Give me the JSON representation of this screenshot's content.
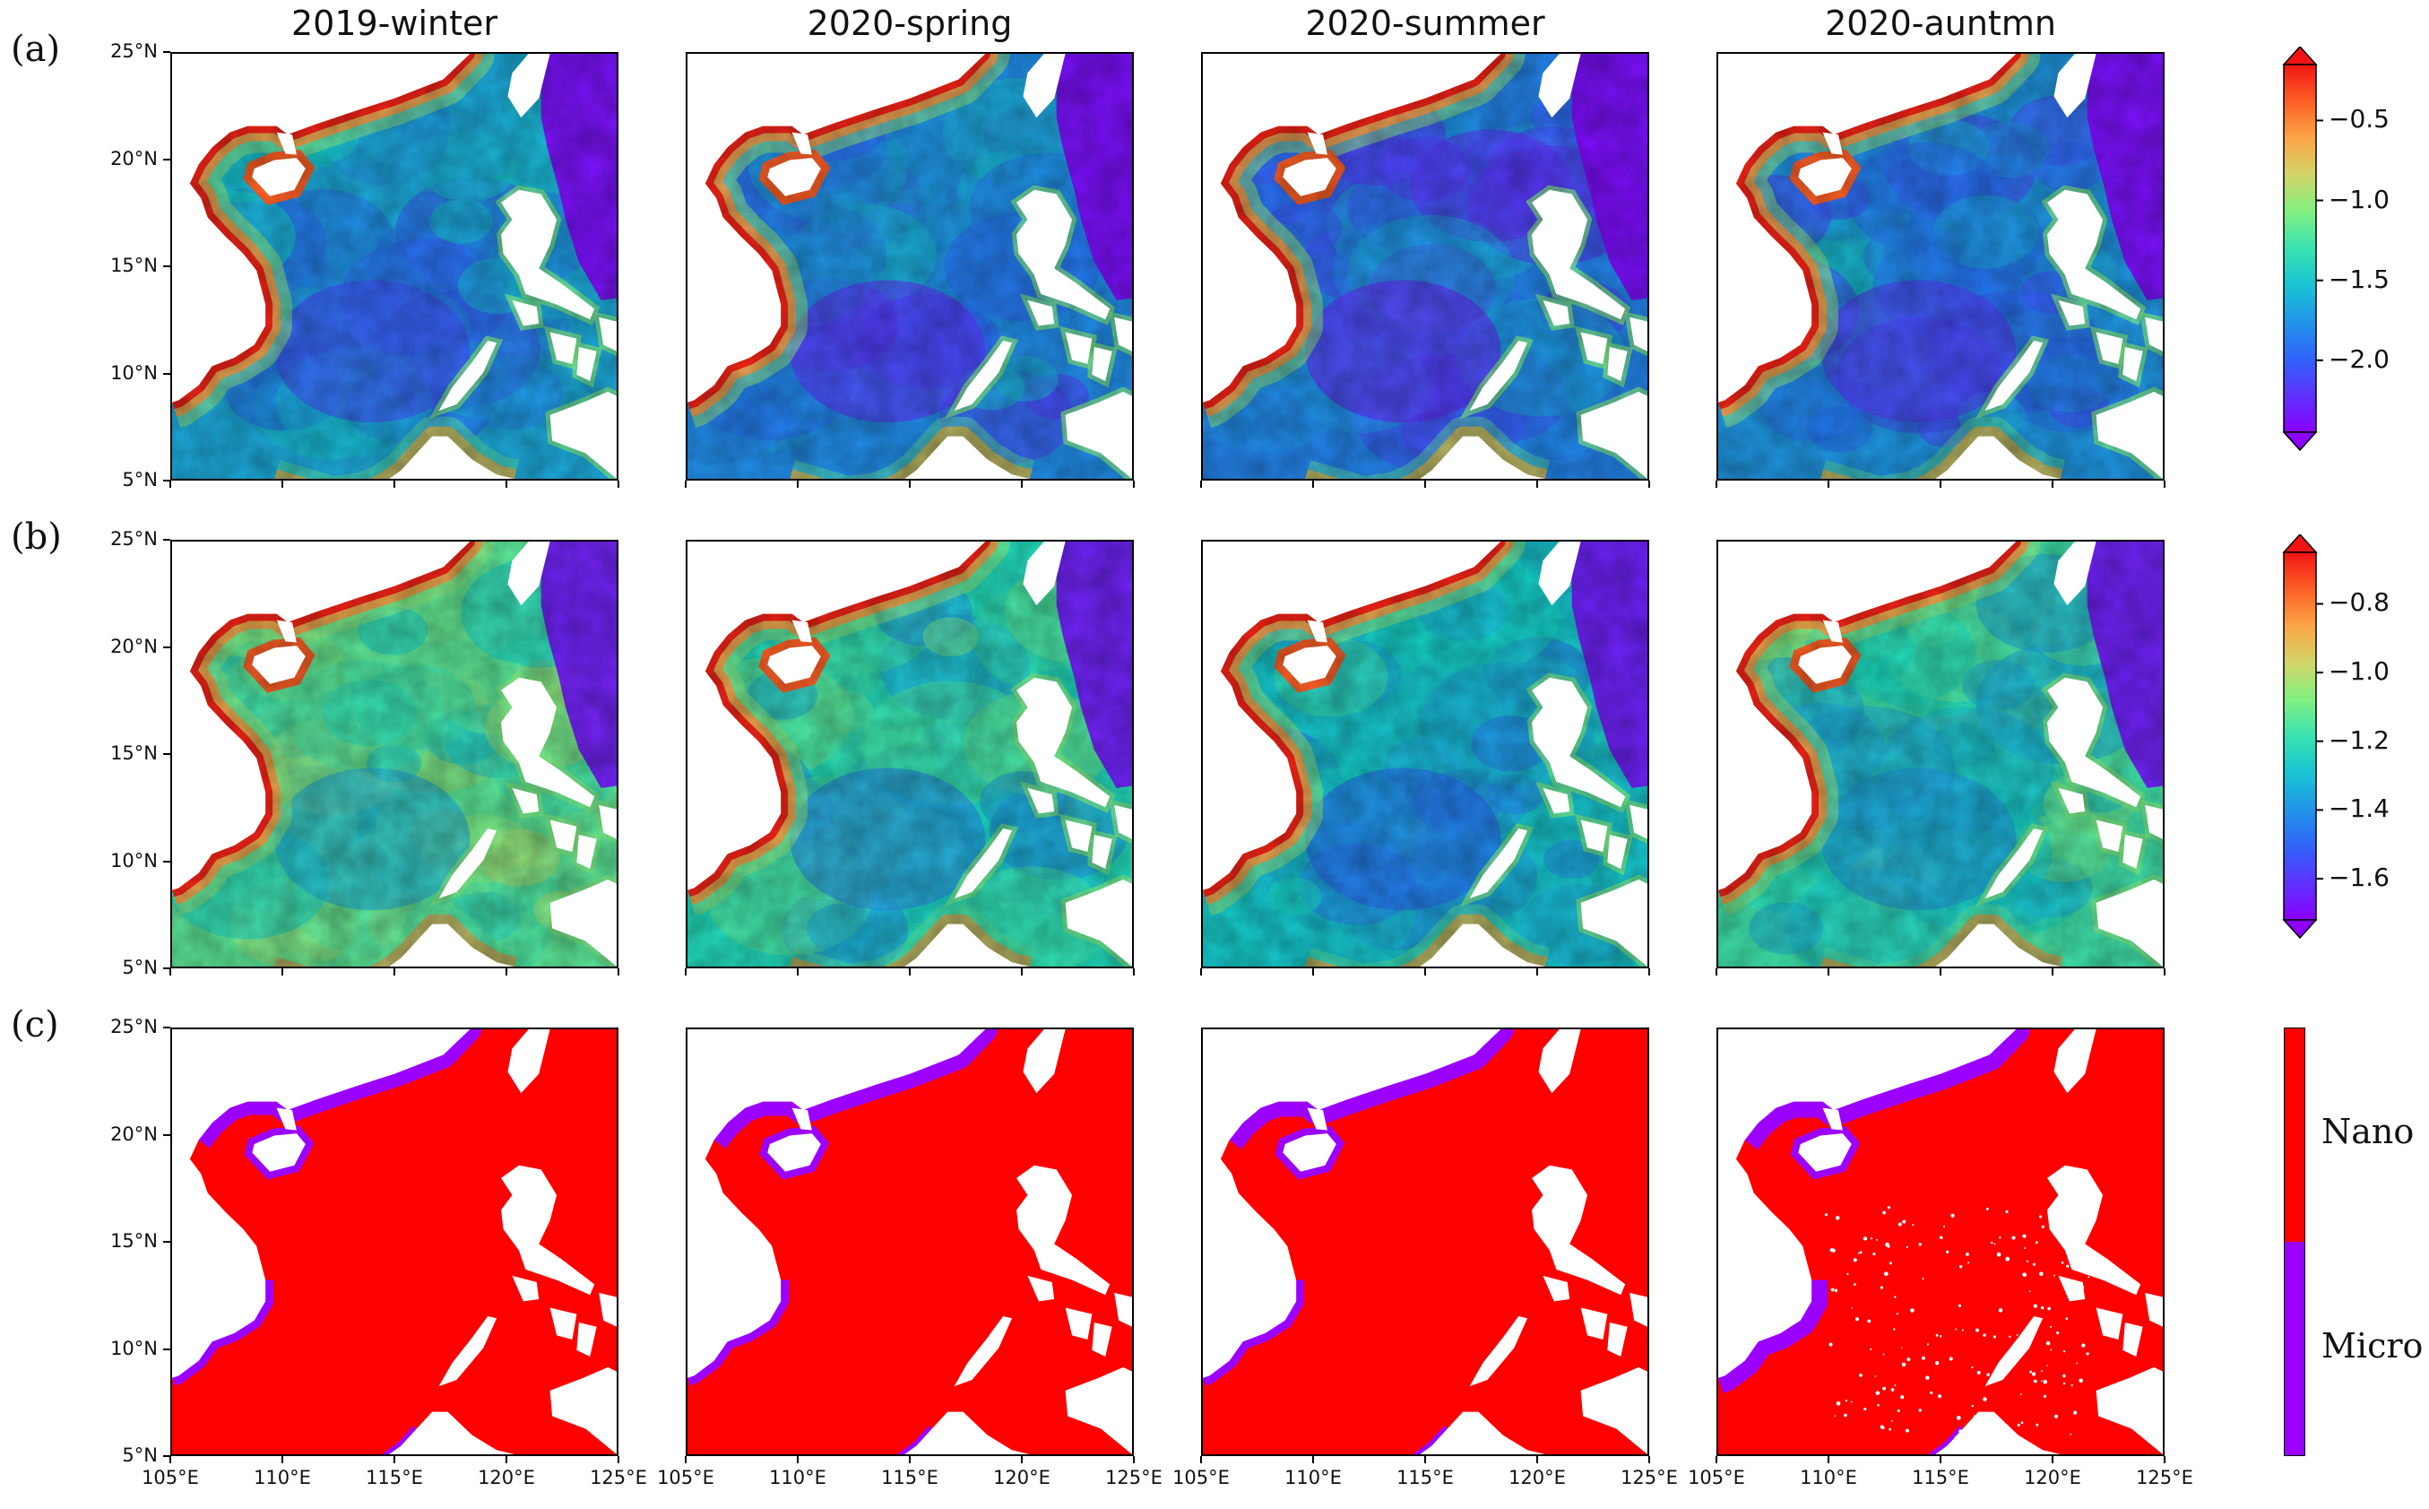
{
  "columns": [
    "2019-winter",
    "2020-spring",
    "2020-summer",
    "2020-auntmn"
  ],
  "rows": [
    {
      "label": "(a)",
      "kind": "continuous",
      "scheme": "a"
    },
    {
      "label": "(b)",
      "kind": "continuous",
      "scheme": "b"
    },
    {
      "label": "(c)",
      "kind": "categorical",
      "scheme": "c"
    }
  ],
  "lat_ticks": [
    "25°N",
    "20°N",
    "15°N",
    "10°N",
    "5°N"
  ],
  "lon_ticks": [
    "105°E",
    "110°E",
    "115°E",
    "120°E",
    "125°E"
  ],
  "colorbar_a": {
    "ticks": [
      "−0.5",
      "−1.0",
      "−1.5",
      "−2.0"
    ],
    "tick_values": [
      -0.5,
      -1.0,
      -1.5,
      -2.0
    ],
    "range": [
      -2.45,
      -0.15
    ],
    "colormap": "rainbow",
    "extend": "both"
  },
  "colorbar_b": {
    "ticks": [
      "−0.8",
      "−1.0",
      "−1.2",
      "−1.4",
      "−1.6"
    ],
    "tick_values": [
      -0.8,
      -1.0,
      -1.2,
      -1.4,
      -1.6
    ],
    "range": [
      -1.72,
      -0.65
    ],
    "colormap": "rainbow",
    "extend": "both"
  },
  "colorbar_c": {
    "categories": [
      "Nano",
      "Micro"
    ],
    "colors": [
      "#ff0000",
      "#9b00ff"
    ]
  },
  "colors": {
    "ocean_low": "#8a2be2",
    "ocean_mid": "#3a7be8",
    "coast_high": "#ff2a00",
    "land": "#ffffff",
    "nano": "#ff0000",
    "micro": "#9b00ff"
  }
}
